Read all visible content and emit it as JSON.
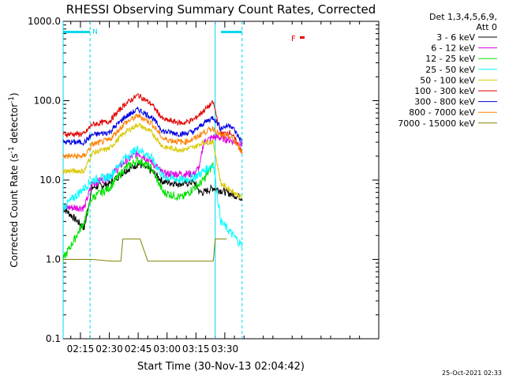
{
  "chart_data": {
    "type": "line",
    "title": "RHESSI Observing Summary Count Rates, Corrected",
    "xlabel": "Start Time (30-Nov-13 02:04:42)",
    "ylabel": "Corrected Count Rate (s",
    "ylabel_exp": "-1",
    "ylabel_tail": " detector",
    "ylabel_end": ")",
    "yscale": "log",
    "ylim": [
      0.1,
      1000
    ],
    "xlim_minutes": [
      126,
      290
    ],
    "y_ticks": [
      {
        "value": 1000,
        "label": "1000.0"
      },
      {
        "value": 100,
        "label": "100.0"
      },
      {
        "value": 10,
        "label": "10.0"
      },
      {
        "value": 1,
        "label": "1.0"
      },
      {
        "value": 0.1,
        "label": "0.1"
      }
    ],
    "x_ticks": [
      {
        "value": 135,
        "label": "02:15"
      },
      {
        "value": 150,
        "label": "02:30"
      },
      {
        "value": 165,
        "label": "02:45"
      },
      {
        "value": 180,
        "label": "03:00"
      },
      {
        "value": 195,
        "label": "03:15"
      },
      {
        "value": 210,
        "label": "03:30"
      }
    ],
    "legend_header": [
      "Det 1,3,4,5,6,9,",
      "Att 0"
    ],
    "legend_position": "right",
    "series": [
      {
        "name": "3 - 6 keV",
        "color": "#000000",
        "x": [
          126,
          137,
          141,
          150,
          158,
          165,
          172,
          178,
          188,
          194,
          197,
          199,
          204,
          211,
          219
        ],
        "values": [
          4.5,
          2.5,
          8.0,
          9.0,
          13,
          16,
          13,
          9.5,
          9.0,
          9.5,
          7.0,
          7.0,
          8.0,
          7.0,
          6.0
        ]
      },
      {
        "name": "6 - 12 keV",
        "color": "#e000e0",
        "x": [
          126,
          137,
          141,
          150,
          158,
          165,
          172,
          178,
          188,
          194,
          197,
          199,
          204,
          211,
          219
        ],
        "values": [
          4.5,
          4.5,
          9.0,
          11,
          17,
          22,
          17,
          12,
          12,
          12,
          15,
          30,
          35,
          33,
          28
        ]
      },
      {
        "name": "12 - 25 keV",
        "color": "#00e000",
        "x": [
          126,
          137,
          141,
          150,
          158,
          165,
          172,
          178,
          188,
          194,
          197,
          199,
          204
        ],
        "values": [
          1.0,
          3.0,
          6.0,
          8.0,
          14,
          18,
          14,
          7.0,
          6.0,
          8.0,
          9.0,
          10,
          16
        ]
      },
      {
        "name": "25 - 50 keV",
        "color": "#00ffff",
        "x": [
          126,
          137,
          141,
          150,
          158,
          165,
          172,
          178,
          188,
          194,
          197,
          199,
          204,
          208,
          219
        ],
        "values": [
          4.5,
          8.0,
          10,
          11,
          19,
          25,
          19,
          11,
          10,
          11,
          12,
          13,
          16,
          3.0,
          1.5
        ]
      },
      {
        "name": "50 - 100 keV",
        "color": "#d8c800",
        "x": [
          126,
          137,
          141,
          150,
          158,
          165,
          172,
          178,
          188,
          194,
          199,
          204,
          208,
          219
        ],
        "values": [
          13,
          13,
          22,
          25,
          40,
          50,
          40,
          26,
          24,
          26,
          30,
          30,
          9.0,
          6.0
        ]
      },
      {
        "name": "100 - 300 keV",
        "color": "#e00000",
        "x": [
          126,
          137,
          141,
          150,
          158,
          165,
          172,
          178,
          188,
          194,
          199,
          204,
          208,
          213,
          219
        ],
        "values": [
          38,
          38,
          50,
          55,
          90,
          118,
          90,
          58,
          52,
          58,
          75,
          95,
          38,
          40,
          23
        ]
      },
      {
        "name": "300 - 800 keV",
        "color": "#0000e0",
        "x": [
          126,
          137,
          141,
          150,
          158,
          165,
          172,
          178,
          188,
          194,
          199,
          204,
          208,
          213,
          219
        ],
        "values": [
          30,
          30,
          37,
          40,
          62,
          78,
          62,
          41,
          38,
          41,
          52,
          62,
          45,
          50,
          30
        ]
      },
      {
        "name": "800 - 7000 keV",
        "color": "#ff8000",
        "x": [
          126,
          137,
          141,
          150,
          158,
          165,
          172,
          178,
          188,
          194,
          199,
          204,
          208,
          213,
          219
        ],
        "values": [
          20,
          20,
          28,
          32,
          52,
          65,
          52,
          33,
          30,
          33,
          40,
          45,
          36,
          35,
          23
        ]
      },
      {
        "name": "7000 - 15000 keV",
        "color": "#808000",
        "x": [
          126,
          137,
          141,
          151,
          156,
          157,
          166,
          170,
          177,
          204,
          205,
          211
        ],
        "values": [
          1.0,
          1.0,
          1.0,
          0.95,
          0.95,
          1.8,
          1.8,
          0.95,
          0.95,
          0.95,
          1.8,
          1.8
        ]
      }
    ],
    "attenuator_bars": [
      {
        "x_start": 126,
        "x_end": 140,
        "label": "N"
      },
      {
        "x_start": 208,
        "x_end": 219,
        "label": ""
      }
    ],
    "flare_marker": {
      "label": "F",
      "color": "#e00000"
    },
    "vertical_lines": [
      {
        "x": 126,
        "style": "solid"
      },
      {
        "x": 140,
        "style": "dashed"
      },
      {
        "x": 205,
        "style": "solid"
      },
      {
        "x": 219,
        "style": "dashed"
      }
    ]
  },
  "footer": {
    "timestamp": "25-Oct-2021 02:33"
  }
}
